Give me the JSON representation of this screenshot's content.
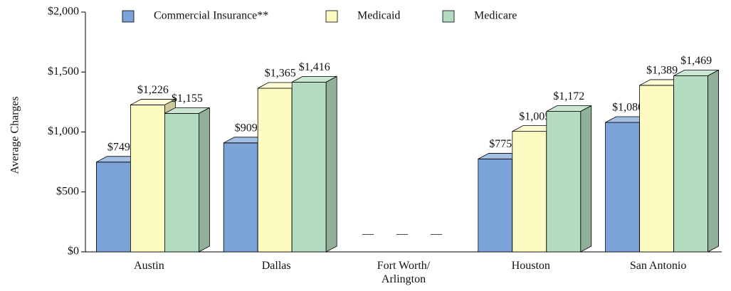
{
  "chart_data": {
    "type": "bar3d",
    "ylabel": "Average Charges",
    "categories": [
      "Austin",
      "Dallas",
      "Fort Worth/ Arlington",
      "Houston",
      "San Antonio"
    ],
    "series": [
      {
        "name": "Commercial Insurance**",
        "color": "#7ba3d8",
        "values": [
          749,
          909,
          null,
          775,
          1080
        ],
        "value_labels": [
          "$749",
          "$909",
          "—",
          "$775",
          "$1,080"
        ]
      },
      {
        "name": "Medicaid",
        "color": "#fdfbc1",
        "values": [
          1226,
          1365,
          null,
          1005,
          1389
        ],
        "value_labels": [
          "$1,226",
          "$1,365",
          "—",
          "$1,005",
          "$1,389"
        ]
      },
      {
        "name": "Medicare",
        "color": "#b4dcc0",
        "values": [
          1155,
          1416,
          null,
          1172,
          1469
        ],
        "value_labels": [
          "$1,155",
          "$1,416",
          "—",
          "$1,172",
          "$1,469"
        ]
      }
    ],
    "ylim": [
      0,
      2000
    ],
    "yticks": [
      {
        "value": 0,
        "label": "$0"
      },
      {
        "value": 500,
        "label": "$500"
      },
      {
        "value": 1000,
        "label": "$1,000"
      },
      {
        "value": 1500,
        "label": "$1,500"
      },
      {
        "value": 2000,
        "label": "$2,000"
      }
    ],
    "legend": "top"
  }
}
